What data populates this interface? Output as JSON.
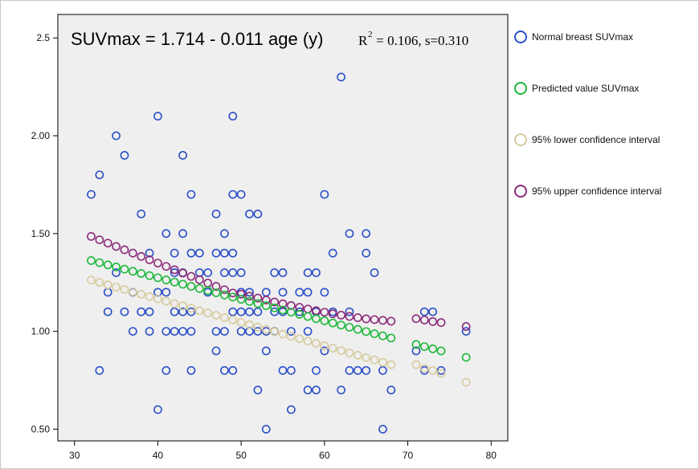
{
  "chart_data": {
    "type": "scatter",
    "title": "",
    "xlabel": "",
    "ylabel": "",
    "xlim": [
      28,
      82
    ],
    "ylim": [
      0.44,
      2.62
    ],
    "x_ticks": [
      30,
      40,
      50,
      60,
      70,
      80
    ],
    "y_ticks": [
      0.5,
      1.0,
      1.5,
      2.0,
      2.5
    ],
    "y_tick_labels": [
      "0.50",
      "1.00",
      "1.50",
      "2.00",
      "2.5"
    ],
    "x_tick_labels": [
      "30",
      "40",
      "50",
      "60",
      "70",
      "80"
    ],
    "grid": false,
    "background": "#efefef",
    "legend_position": "right",
    "annotation": {
      "main": "SUVmax = 1.714 - 0.011 age (y)",
      "r_label": "R",
      "r_sup": "2",
      "stats": " = 0.106, s=0.310"
    },
    "series": [
      {
        "name": "Normal breast SUVmax",
        "color": "#2b4fc9",
        "points": [
          [
            32,
            1.7
          ],
          [
            33,
            1.8
          ],
          [
            33,
            0.8
          ],
          [
            34,
            1.2
          ],
          [
            34,
            1.1
          ],
          [
            35,
            2.0
          ],
          [
            35,
            1.3
          ],
          [
            36,
            1.9
          ],
          [
            36,
            1.1
          ],
          [
            37,
            1.2
          ],
          [
            37,
            1.0
          ],
          [
            38,
            1.6
          ],
          [
            38,
            1.1
          ],
          [
            39,
            1.4
          ],
          [
            39,
            1.1
          ],
          [
            39,
            1.0
          ],
          [
            40,
            2.1
          ],
          [
            40,
            1.2
          ],
          [
            40,
            0.6
          ],
          [
            41,
            1.5
          ],
          [
            41,
            1.2
          ],
          [
            41,
            1.0
          ],
          [
            41,
            0.8
          ],
          [
            42,
            1.4
          ],
          [
            42,
            1.3
          ],
          [
            42,
            1.1
          ],
          [
            42,
            1.0
          ],
          [
            43,
            1.9
          ],
          [
            43,
            1.5
          ],
          [
            43,
            1.3
          ],
          [
            43,
            1.1
          ],
          [
            43,
            1.0
          ],
          [
            44,
            1.7
          ],
          [
            44,
            1.4
          ],
          [
            44,
            1.1
          ],
          [
            44,
            1.0
          ],
          [
            44,
            0.8
          ],
          [
            45,
            1.4
          ],
          [
            45,
            1.3
          ],
          [
            46,
            1.3
          ],
          [
            46,
            1.2
          ],
          [
            47,
            1.6
          ],
          [
            47,
            1.4
          ],
          [
            47,
            1.0
          ],
          [
            47,
            0.9
          ],
          [
            48,
            1.5
          ],
          [
            48,
            1.4
          ],
          [
            48,
            1.3
          ],
          [
            48,
            1.0
          ],
          [
            48,
            0.8
          ],
          [
            49,
            2.1
          ],
          [
            49,
            1.7
          ],
          [
            49,
            1.4
          ],
          [
            49,
            1.3
          ],
          [
            49,
            1.1
          ],
          [
            49,
            0.8
          ],
          [
            50,
            1.7
          ],
          [
            50,
            1.3
          ],
          [
            50,
            1.2
          ],
          [
            50,
            1.1
          ],
          [
            50,
            1.0
          ],
          [
            51,
            1.6
          ],
          [
            51,
            1.2
          ],
          [
            51,
            1.1
          ],
          [
            51,
            1.0
          ],
          [
            52,
            1.6
          ],
          [
            52,
            1.1
          ],
          [
            52,
            1.0
          ],
          [
            52,
            0.7
          ],
          [
            53,
            1.2
          ],
          [
            53,
            1.0
          ],
          [
            53,
            0.9
          ],
          [
            53,
            0.5
          ],
          [
            54,
            1.3
          ],
          [
            54,
            1.1
          ],
          [
            54,
            1.0
          ],
          [
            55,
            1.3
          ],
          [
            55,
            1.2
          ],
          [
            55,
            1.1
          ],
          [
            55,
            0.8
          ],
          [
            56,
            1.0
          ],
          [
            56,
            0.8
          ],
          [
            56,
            0.6
          ],
          [
            57,
            1.2
          ],
          [
            57,
            1.1
          ],
          [
            58,
            1.3
          ],
          [
            58,
            1.2
          ],
          [
            58,
            1.0
          ],
          [
            58,
            0.7
          ],
          [
            59,
            1.3
          ],
          [
            59,
            1.1
          ],
          [
            59,
            0.8
          ],
          [
            59,
            0.7
          ],
          [
            60,
            1.7
          ],
          [
            60,
            1.2
          ],
          [
            60,
            0.9
          ],
          [
            61,
            1.4
          ],
          [
            61,
            1.1
          ],
          [
            62,
            2.3
          ],
          [
            62,
            0.7
          ],
          [
            63,
            1.5
          ],
          [
            63,
            1.1
          ],
          [
            63,
            0.8
          ],
          [
            64,
            0.8
          ],
          [
            65,
            1.5
          ],
          [
            65,
            1.4
          ],
          [
            65,
            0.8
          ],
          [
            66,
            1.3
          ],
          [
            67,
            0.8
          ],
          [
            67,
            0.5
          ],
          [
            68,
            0.7
          ],
          [
            71,
            0.9
          ],
          [
            72,
            1.1
          ],
          [
            72,
            0.8
          ],
          [
            73,
            1.1
          ],
          [
            74,
            0.8
          ],
          [
            77,
            1.0
          ]
        ]
      },
      {
        "name": "Predicted value SUVmax",
        "color": "#1db83a",
        "line": {
          "intercept": 1.714,
          "slope": -0.011
        },
        "x": [
          32,
          33,
          34,
          35,
          36,
          37,
          38,
          39,
          40,
          41,
          42,
          43,
          44,
          45,
          46,
          47,
          48,
          49,
          50,
          51,
          52,
          53,
          54,
          55,
          56,
          57,
          58,
          59,
          60,
          61,
          62,
          63,
          64,
          65,
          66,
          67,
          68,
          71,
          72,
          73,
          74,
          77
        ]
      },
      {
        "name": "95% lower confidence interval",
        "color": "#d6cb9f",
        "points": [
          [
            32,
            1.262
          ],
          [
            33,
            1.25
          ],
          [
            34,
            1.238
          ],
          [
            35,
            1.226
          ],
          [
            36,
            1.214
          ],
          [
            37,
            1.202
          ],
          [
            38,
            1.19
          ],
          [
            39,
            1.178
          ],
          [
            40,
            1.166
          ],
          [
            41,
            1.154
          ],
          [
            42,
            1.142
          ],
          [
            43,
            1.13
          ],
          [
            44,
            1.118
          ],
          [
            45,
            1.106
          ],
          [
            46,
            1.094
          ],
          [
            47,
            1.082
          ],
          [
            48,
            1.07
          ],
          [
            49,
            1.058
          ],
          [
            50,
            1.046
          ],
          [
            51,
            1.034
          ],
          [
            52,
            1.022
          ],
          [
            53,
            1.01
          ],
          [
            54,
            0.998
          ],
          [
            55,
            0.986
          ],
          [
            56,
            0.974
          ],
          [
            57,
            0.962
          ],
          [
            58,
            0.95
          ],
          [
            59,
            0.938
          ],
          [
            60,
            0.926
          ],
          [
            61,
            0.914
          ],
          [
            62,
            0.902
          ],
          [
            63,
            0.89
          ],
          [
            64,
            0.878
          ],
          [
            65,
            0.866
          ],
          [
            66,
            0.854
          ],
          [
            67,
            0.842
          ],
          [
            68,
            0.83
          ],
          [
            71,
            0.83
          ],
          [
            72,
            0.81
          ],
          [
            73,
            0.8
          ],
          [
            74,
            0.785
          ],
          [
            77,
            0.74
          ]
        ]
      },
      {
        "name": "95% upper confidence interval",
        "color": "#8b2a7a",
        "points": [
          [
            32,
            1.485
          ],
          [
            33,
            1.468
          ],
          [
            34,
            1.451
          ],
          [
            35,
            1.434
          ],
          [
            36,
            1.417
          ],
          [
            37,
            1.4
          ],
          [
            38,
            1.383
          ],
          [
            39,
            1.366
          ],
          [
            40,
            1.349
          ],
          [
            41,
            1.332
          ],
          [
            42,
            1.315
          ],
          [
            43,
            1.298
          ],
          [
            44,
            1.281
          ],
          [
            45,
            1.264
          ],
          [
            46,
            1.247
          ],
          [
            47,
            1.23
          ],
          [
            48,
            1.213
          ],
          [
            49,
            1.196
          ],
          [
            50,
            1.19
          ],
          [
            51,
            1.18
          ],
          [
            52,
            1.17
          ],
          [
            53,
            1.16
          ],
          [
            54,
            1.15
          ],
          [
            55,
            1.141
          ],
          [
            56,
            1.132
          ],
          [
            57,
            1.123
          ],
          [
            58,
            1.114
          ],
          [
            59,
            1.106
          ],
          [
            60,
            1.098
          ],
          [
            61,
            1.09
          ],
          [
            62,
            1.083
          ],
          [
            63,
            1.076
          ],
          [
            64,
            1.07
          ],
          [
            65,
            1.064
          ],
          [
            66,
            1.06
          ],
          [
            67,
            1.056
          ],
          [
            68,
            1.052
          ],
          [
            71,
            1.065
          ],
          [
            72,
            1.058
          ],
          [
            73,
            1.05
          ],
          [
            74,
            1.045
          ],
          [
            77,
            1.025
          ]
        ]
      }
    ]
  }
}
